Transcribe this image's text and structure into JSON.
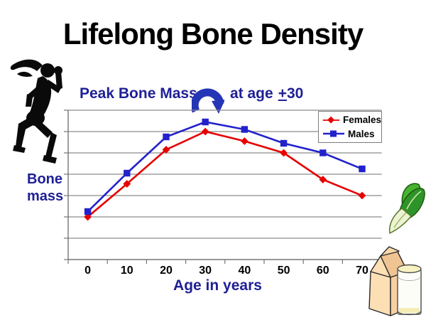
{
  "slide": {
    "title": "Lifelong Bone Density",
    "annotation": {
      "peak_label": "Peak Bone Mass",
      "at_age_prefix": "at age",
      "plus_sign": "+",
      "age_value": "30"
    },
    "clipart": {
      "runner": "running-woman-silhouette",
      "vegetable": "bok-choy",
      "dairy": "milk-carton-and-glass"
    }
  },
  "colors": {
    "title_text": "#000000",
    "label_blue": "#1F2096",
    "arrow_blue": "#2435B5",
    "background": "#FFFFFF"
  },
  "chart_data": {
    "type": "line",
    "categories": [
      "0",
      "10",
      "20",
      "30",
      "40",
      "50",
      "60",
      "70"
    ],
    "series": [
      {
        "name": "Females",
        "color": "#E60000",
        "marker": "diamond",
        "values": [
          2.0,
          3.55,
          5.15,
          6.0,
          5.55,
          5.0,
          3.75,
          3.0
        ]
      },
      {
        "name": "Males",
        "color": "#2222CC",
        "marker": "square",
        "values": [
          2.25,
          4.05,
          5.75,
          6.45,
          6.1,
          5.45,
          5.0,
          4.25
        ]
      }
    ],
    "xlabel": "Age in years",
    "ylabel": "Bone mass",
    "ylim": [
      0,
      7
    ],
    "grid": true,
    "gridline_color": "#8C8C8C",
    "axis_color": "#767676",
    "legend_position": "top-right",
    "note": "y axis unlabeled relative bone-mass units; one gridline per unit"
  }
}
